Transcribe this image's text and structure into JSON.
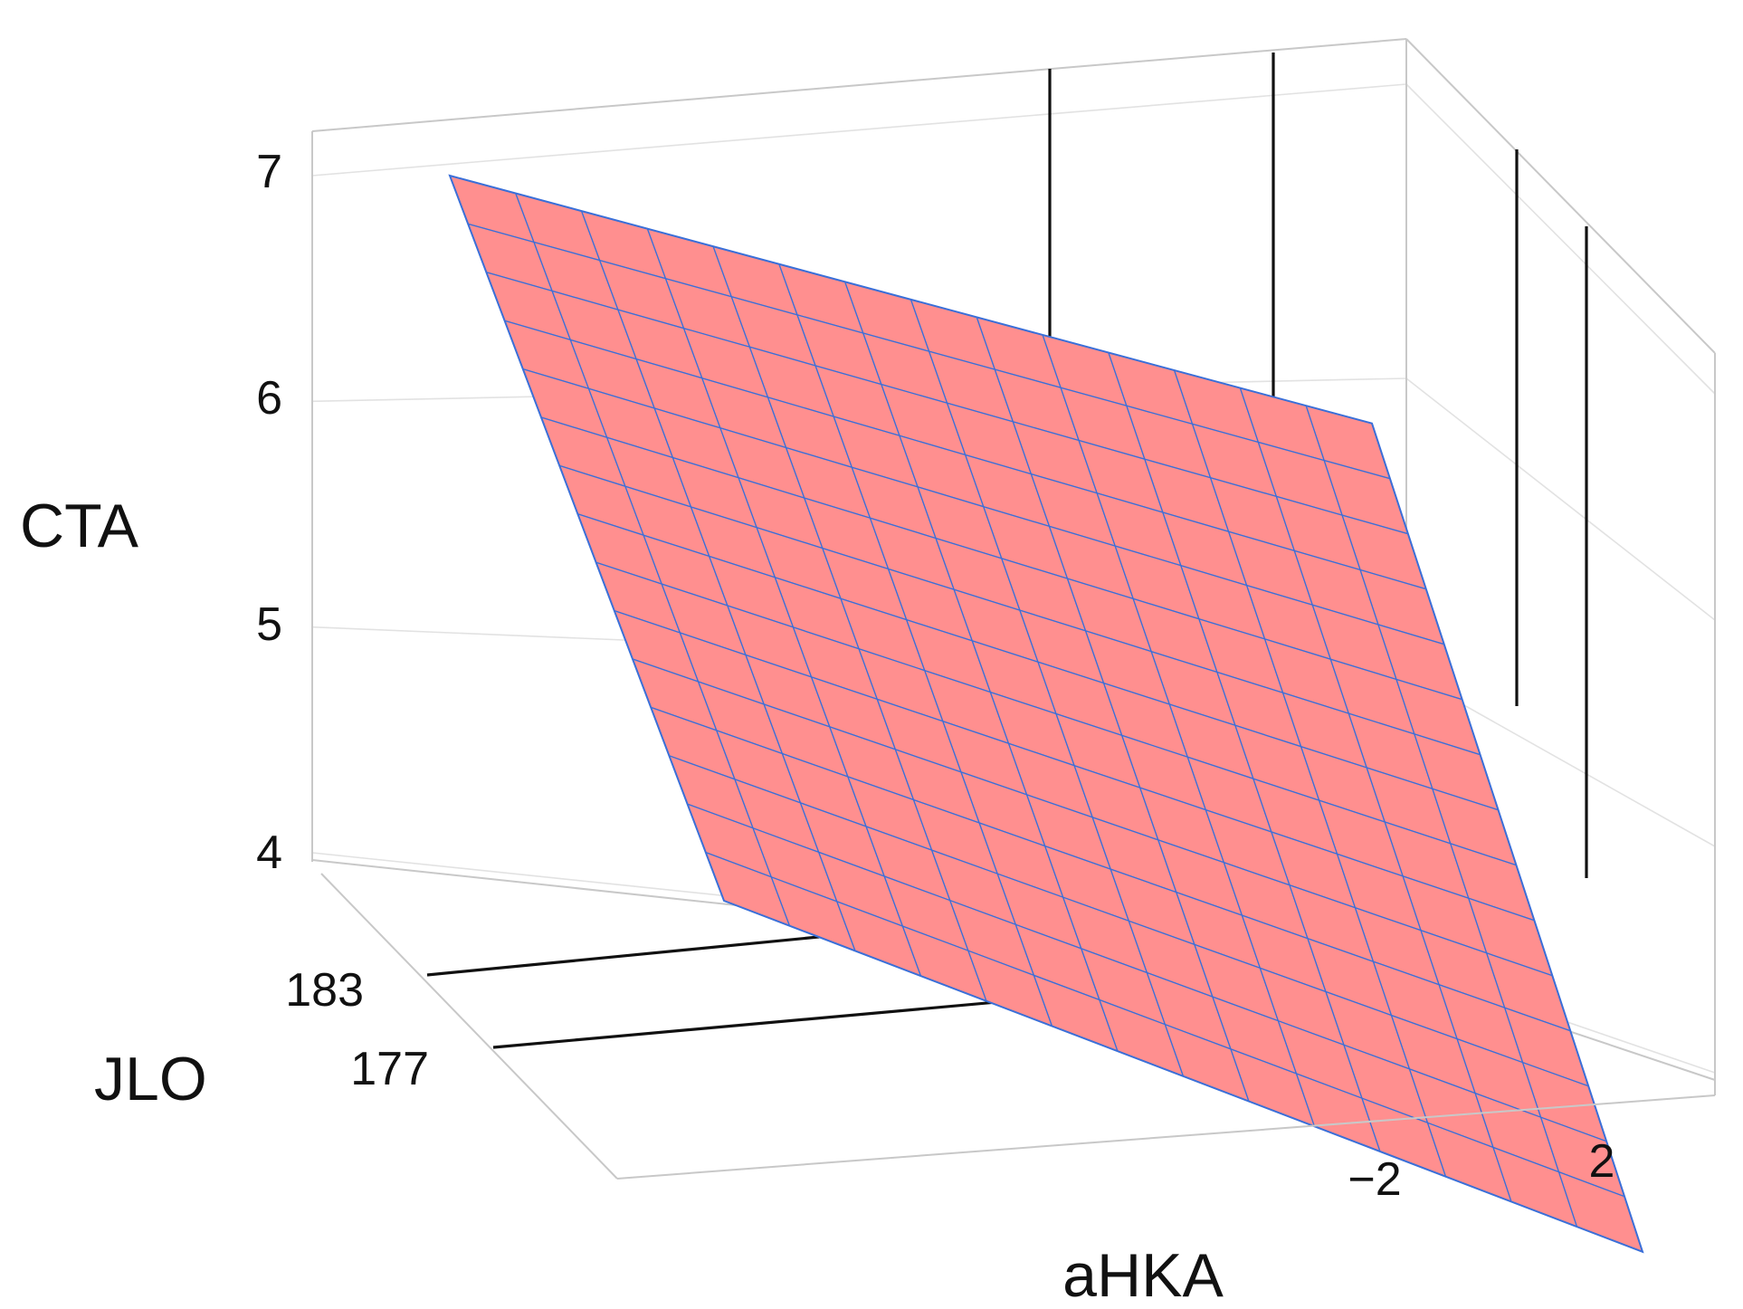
{
  "chart_data": {
    "type": "surface",
    "axes": {
      "x": {
        "label": "aHKA",
        "ticks": [
          "−2",
          "2"
        ]
      },
      "y": {
        "label": "JLO",
        "ticks": [
          "183",
          "177"
        ]
      },
      "z": {
        "label": "CTA",
        "ticks": [
          "7",
          "6",
          "5",
          "4"
        ],
        "range": [
          4,
          7
        ]
      }
    },
    "surface": {
      "grid_rows": 15,
      "grid_cols": 14,
      "corner_values": {
        "front_left": 4.5,
        "back_left": 7.0,
        "back_right": 5.86,
        "front_right": 3.64
      }
    },
    "colors": {
      "surface": "#ff8f8f",
      "mesh": "#3a6fd8"
    }
  }
}
